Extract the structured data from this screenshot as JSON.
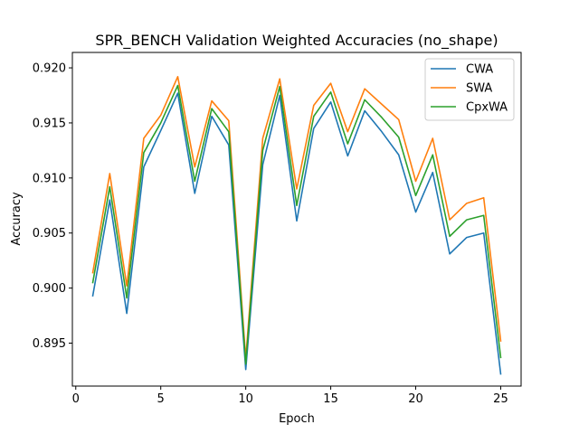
{
  "chart_data": {
    "type": "line",
    "title": "SPR_BENCH Validation Weighted Accuracies (no_shape)",
    "xlabel": "Epoch",
    "ylabel": "Accuracy",
    "xlim": [
      -0.2,
      26.2
    ],
    "ylim": [
      0.8911,
      0.9214
    ],
    "xticks": [
      0,
      5,
      10,
      15,
      20,
      25
    ],
    "yticks": [
      0.895,
      0.9,
      0.905,
      0.91,
      0.915,
      0.92
    ],
    "ytick_labels": [
      "0.895",
      "0.900",
      "0.905",
      "0.910",
      "0.915",
      "0.920"
    ],
    "grid": false,
    "legend_position": "top-right",
    "x": [
      1,
      2,
      3,
      4,
      5,
      6,
      7,
      8,
      9,
      10,
      11,
      12,
      13,
      14,
      15,
      16,
      17,
      18,
      19,
      20,
      21,
      22,
      23,
      24,
      25
    ],
    "series": [
      {
        "name": "CWA",
        "color": "#1f77b4",
        "values": [
          0.8993,
          0.908,
          0.8977,
          0.911,
          0.9143,
          0.9177,
          0.9086,
          0.9156,
          0.913,
          0.8926,
          0.9112,
          0.9175,
          0.9061,
          0.9145,
          0.9169,
          0.912,
          0.9161,
          0.9142,
          0.9121,
          0.9069,
          0.9105,
          0.9031,
          0.9046,
          0.905,
          0.8922
        ]
      },
      {
        "name": "SWA",
        "color": "#ff7f0e",
        "values": [
          0.9014,
          0.9104,
          0.9002,
          0.9136,
          0.9157,
          0.9192,
          0.911,
          0.917,
          0.9152,
          0.8936,
          0.9136,
          0.919,
          0.909,
          0.9166,
          0.9186,
          0.9142,
          0.9181,
          0.9167,
          0.9153,
          0.9097,
          0.9136,
          0.9062,
          0.9077,
          0.9082,
          0.8952
        ]
      },
      {
        "name": "CpxWA",
        "color": "#2ca02c",
        "values": [
          0.9005,
          0.9092,
          0.8991,
          0.9123,
          0.915,
          0.9184,
          0.9097,
          0.9163,
          0.9142,
          0.8931,
          0.9125,
          0.9183,
          0.9075,
          0.9156,
          0.9178,
          0.9131,
          0.9171,
          0.9155,
          0.9137,
          0.9084,
          0.9121,
          0.9047,
          0.9062,
          0.9066,
          0.8937
        ]
      }
    ]
  }
}
